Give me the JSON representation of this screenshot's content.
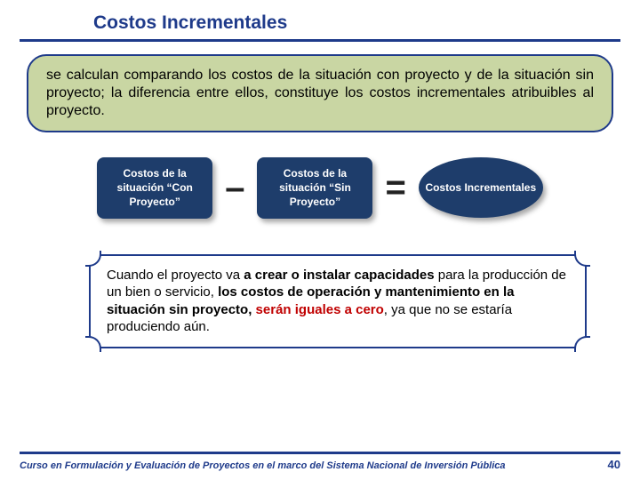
{
  "title": "Costos Incrementales",
  "definition": "se calculan comparando los costos de la situación con proyecto y de la situación sin proyecto; la diferencia entre ellos, constituye los costos incrementales atribuibles al proyecto.",
  "equation": {
    "box1": "Costos de la situación “Con Proyecto”",
    "minus": "–",
    "box2": "Costos de la situación “Sin Proyecto”",
    "equals": "=",
    "result": "Costos Incrementales"
  },
  "note": {
    "p1a": "Cuando el proyecto va ",
    "p1b": "a crear o instalar capacidades",
    "p1c": " para la producción de un bien o servicio, ",
    "p1d": "los costos de operación y mantenimiento en la situación sin proyecto, ",
    "p1e": "serán iguales a cero",
    "p1f": ", ya que no se estaría produciendo aún."
  },
  "footer": {
    "text": "Curso en Formulación y Evaluación de Proyectos en el marco del Sistema Nacional de Inversión Pública",
    "page": "40"
  },
  "colors": {
    "brand": "#1e3a8a",
    "box_bg": "#1e3d6b",
    "def_bg": "#c9d6a3",
    "red": "#c00000"
  }
}
